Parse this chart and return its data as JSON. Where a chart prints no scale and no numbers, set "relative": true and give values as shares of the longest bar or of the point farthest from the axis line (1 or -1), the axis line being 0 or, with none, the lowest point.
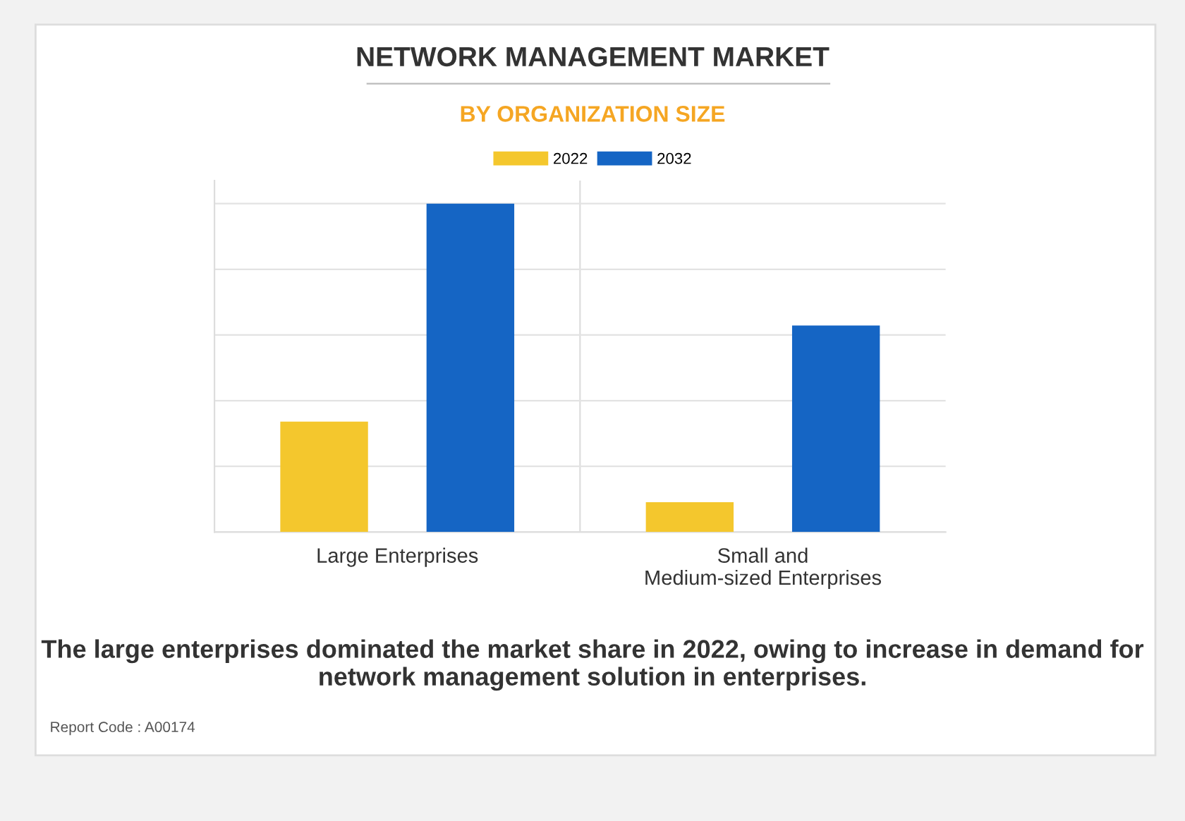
{
  "chart_data": {
    "type": "bar",
    "title": "NETWORK MANAGEMENT MARKET",
    "subtitle": "BY ORGANIZATION SIZE",
    "categories": [
      "Large Enterprises",
      "Small and\nMedium-sized Enterprises"
    ],
    "series": [
      {
        "name": "2022",
        "color": "#f4c72d",
        "values": [
          0.336,
          0.091
        ]
      },
      {
        "name": "2032",
        "color": "#1565c4",
        "values": [
          1,
          0.629
        ]
      }
    ],
    "relative": true,
    "grid": "y",
    "legend": "top",
    "annotations": [
      "The large enterprises dominated the market share in 2022, owing to increase in demand for network management solution in enterprises.",
      "Report Code : A00174"
    ]
  }
}
